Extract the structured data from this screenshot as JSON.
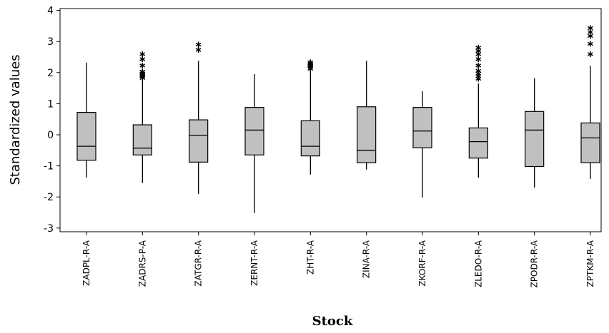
{
  "chart_data": {
    "type": "boxplot",
    "xlabel": "Stock",
    "ylabel": "Standardized values",
    "ylim": [
      -3.15,
      4.05
    ],
    "yticks": [
      4,
      3,
      2,
      1,
      0,
      -1,
      -2,
      -3
    ],
    "box_fill": "#c0c0c0",
    "categories": [
      "ZADPL-R-A",
      "ZADRS-P-A",
      "ZATGR-R-A",
      "ZERNT-R-A",
      "ZHT-R-A",
      "ZINA-R-A",
      "ZKORF-R-A",
      "ZLEDO-R-A",
      "ZPODR-R-A",
      "ZPTKM-R-A"
    ],
    "boxes": [
      {
        "whisker_low": -1.38,
        "q1": -0.82,
        "median": -0.37,
        "q3": 0.72,
        "whisker_high": 2.32,
        "outliers": []
      },
      {
        "whisker_low": -1.55,
        "q1": -0.65,
        "median": -0.43,
        "q3": 0.32,
        "whisker_high": 1.82,
        "outliers": [
          1.85,
          1.9,
          1.95,
          2.0,
          2.05,
          2.25,
          2.45,
          2.62
        ]
      },
      {
        "whisker_low": -1.9,
        "q1": -0.88,
        "median": -0.02,
        "q3": 0.48,
        "whisker_high": 2.38,
        "outliers": [
          2.75,
          2.92
        ]
      },
      {
        "whisker_low": -2.52,
        "q1": -0.65,
        "median": 0.15,
        "q3": 0.88,
        "whisker_high": 1.95,
        "outliers": []
      },
      {
        "whisker_low": -1.28,
        "q1": -0.68,
        "median": -0.37,
        "q3": 0.45,
        "whisker_high": 2.1,
        "outliers": [
          2.15,
          2.2,
          2.25,
          2.3,
          2.35
        ]
      },
      {
        "whisker_low": -1.12,
        "q1": -0.9,
        "median": -0.5,
        "q3": 0.9,
        "whisker_high": 2.38,
        "outliers": []
      },
      {
        "whisker_low": -2.02,
        "q1": -0.42,
        "median": 0.12,
        "q3": 0.88,
        "whisker_high": 1.4,
        "outliers": []
      },
      {
        "whisker_low": -1.38,
        "q1": -0.75,
        "median": -0.22,
        "q3": 0.22,
        "whisker_high": 1.65,
        "outliers": [
          1.82,
          1.9,
          1.98,
          2.08,
          2.25,
          2.45,
          2.62,
          2.72,
          2.82
        ]
      },
      {
        "whisker_low": -1.7,
        "q1": -1.02,
        "median": 0.15,
        "q3": 0.75,
        "whisker_high": 1.82,
        "outliers": []
      },
      {
        "whisker_low": -1.42,
        "q1": -0.9,
        "median": -0.1,
        "q3": 0.38,
        "whisker_high": 2.22,
        "outliers": [
          2.62,
          2.95,
          3.2,
          3.32,
          3.45
        ]
      }
    ]
  }
}
